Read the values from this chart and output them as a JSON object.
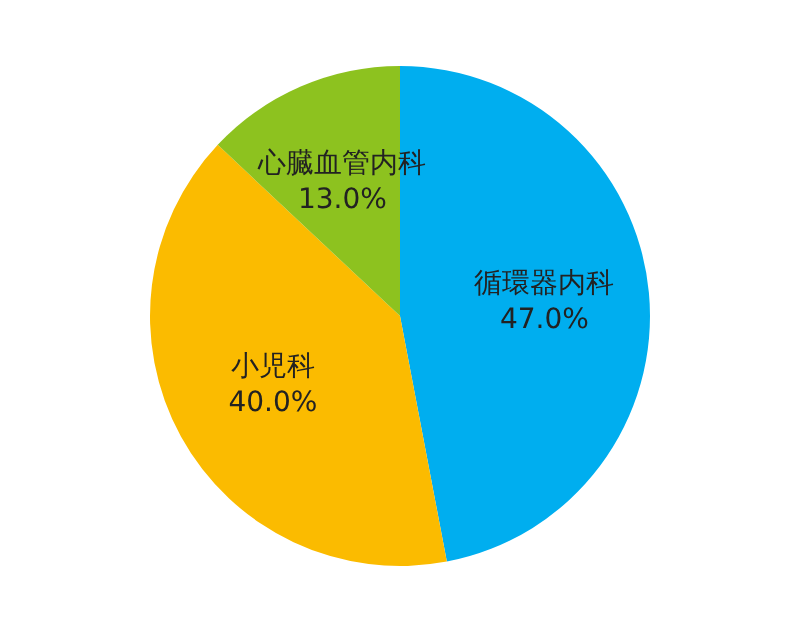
{
  "chart_data": {
    "type": "pie",
    "categories": [
      "循環器内科",
      "小児科",
      "心臓血管内科"
    ],
    "values": [
      47.0,
      40.0,
      13.0
    ],
    "colors": [
      "#00aeef",
      "#fbbb00",
      "#8dc21f"
    ],
    "value_labels": [
      "47.0%",
      "40.0%",
      "13.0%"
    ],
    "legend": false
  }
}
